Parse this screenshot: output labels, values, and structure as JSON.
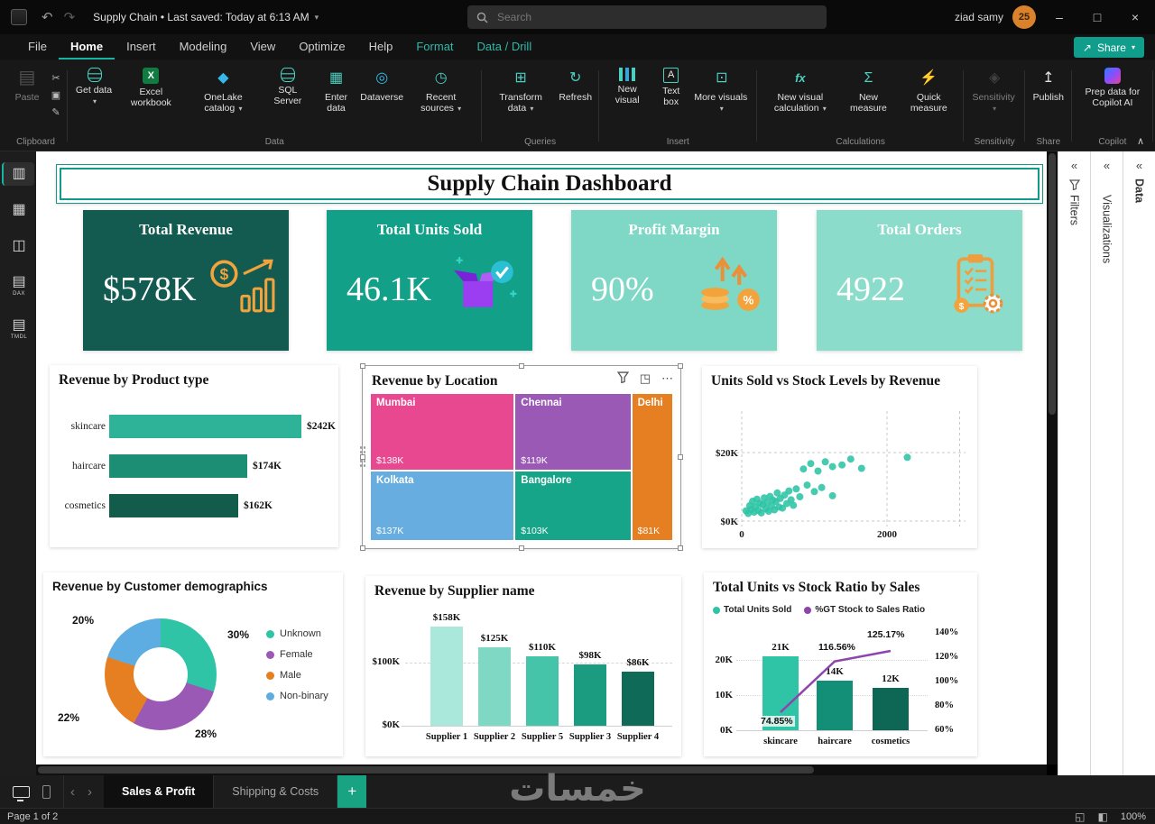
{
  "window": {
    "title": "Supply Chain • Last saved: Today at 6:13 AM",
    "search_placeholder": "Search",
    "user_name": "ziad samy",
    "avatar_text": "25"
  },
  "header": {
    "share_label": "Share"
  },
  "menu": {
    "items": [
      {
        "label": "File"
      },
      {
        "label": "Home",
        "active": true
      },
      {
        "label": "Insert"
      },
      {
        "label": "Modeling"
      },
      {
        "label": "View"
      },
      {
        "label": "Optimize"
      },
      {
        "label": "Help"
      },
      {
        "label": "Format",
        "accent": true
      },
      {
        "label": "Data / Drill",
        "accent": true
      }
    ]
  },
  "ribbon": {
    "groups": [
      {
        "label": "Clipboard",
        "buttons": [
          {
            "label": "Paste",
            "icon": "paste-icon",
            "disabled": true
          }
        ],
        "small_icons": [
          "cut-icon",
          "copy-icon",
          "format-painter-icon"
        ]
      },
      {
        "label": "Data",
        "buttons": [
          {
            "label": "Get data",
            "icon": "database-icon",
            "dropdown": true
          },
          {
            "label": "Excel workbook",
            "icon": "excel-icon"
          },
          {
            "label": "OneLake catalog",
            "icon": "onelake-icon",
            "dropdown": true
          },
          {
            "label": "SQL Server",
            "icon": "sql-server-icon"
          },
          {
            "label": "Enter data",
            "icon": "enter-data-icon"
          },
          {
            "label": "Dataverse",
            "icon": "dataverse-icon"
          },
          {
            "label": "Recent sources",
            "icon": "recent-sources-icon",
            "dropdown": true
          }
        ]
      },
      {
        "label": "Queries",
        "buttons": [
          {
            "label": "Transform data",
            "icon": "transform-data-icon",
            "dropdown": true
          },
          {
            "label": "Refresh",
            "icon": "refresh-icon"
          }
        ]
      },
      {
        "label": "Insert",
        "buttons": [
          {
            "label": "New visual",
            "icon": "new-visual-icon"
          },
          {
            "label": "Text box",
            "icon": "text-box-icon"
          },
          {
            "label": "More visuals",
            "icon": "more-visuals-icon",
            "dropdown": true
          }
        ]
      },
      {
        "label": "Calculations",
        "buttons": [
          {
            "label": "New visual calculation",
            "icon": "new-visual-calculation-icon",
            "dropdown": true
          },
          {
            "label": "New measure",
            "icon": "new-measure-icon"
          },
          {
            "label": "Quick measure",
            "icon": "quick-measure-icon"
          }
        ]
      },
      {
        "label": "Sensitivity",
        "buttons": [
          {
            "label": "Sensitivity",
            "icon": "sensitivity-icon",
            "dropdown": true,
            "disabled": true
          }
        ]
      },
      {
        "label": "Share",
        "buttons": [
          {
            "label": "Publish",
            "icon": "publish-icon"
          }
        ]
      },
      {
        "label": "Copilot",
        "buttons": [
          {
            "label": "Prep data for Copilot AI",
            "icon": "copilot-icon"
          }
        ]
      }
    ]
  },
  "sidebar": {
    "items": [
      {
        "name": "report-view"
      },
      {
        "name": "table-view"
      },
      {
        "name": "model-view"
      },
      {
        "name": "dax-query-view",
        "caption": "DAX"
      },
      {
        "name": "tmdl-view",
        "caption": "TMDL"
      }
    ]
  },
  "panels": [
    {
      "label": "Filters",
      "funnel": true
    },
    {
      "label": "Visualizations"
    },
    {
      "label": "Data",
      "bold": true
    }
  ],
  "canvas": {
    "dashboard_title": "Supply Chain Dashboard",
    "kpis": [
      {
        "title": "Total Revenue",
        "value": "$578K",
        "bg": "#135B50"
      },
      {
        "title": "Total Units Sold",
        "value": "46.1K",
        "bg": "#12A089"
      },
      {
        "title": "Profit Margin",
        "value": "90%",
        "bg": "#7FD8C6"
      },
      {
        "title": "Total Orders",
        "value": "4922",
        "bg": "#8BDCCB"
      }
    ]
  },
  "pagebar": {
    "tabs": [
      "Sales & Profit",
      "Shipping & Costs"
    ],
    "active_index": 0,
    "add_label": "+",
    "watermark": "خمسات"
  },
  "statusbar": {
    "page_indicator": "Page 1 of 2",
    "zoom": "100%"
  },
  "chart_data": [
    {
      "id": "revenue-by-product",
      "type": "bar",
      "orientation": "horizontal",
      "title": "Revenue by Product type",
      "categories": [
        "skincare",
        "haircare",
        "cosmetics"
      ],
      "values": [
        242,
        174,
        162
      ],
      "value_labels": [
        "$242K",
        "$174K",
        "$162K"
      ],
      "colors": [
        "#2EB398",
        "#1B8E74",
        "#115C4B"
      ],
      "xlim": [
        0,
        260
      ]
    },
    {
      "id": "revenue-by-location",
      "type": "treemap",
      "title": "Revenue by Location",
      "selected": true,
      "cells": [
        {
          "name": "Mumbai",
          "value": 138,
          "value_label": "$138K",
          "color": "#E8488F",
          "rect": {
            "x": 0,
            "y": 0,
            "w": 47.7,
            "h": 52.3
          }
        },
        {
          "name": "Chennai",
          "value": 119,
          "value_label": "$119K",
          "color": "#9B59B6",
          "rect": {
            "x": 47.7,
            "y": 0,
            "w": 38.5,
            "h": 52.3
          }
        },
        {
          "name": "Delhi",
          "value": 81,
          "value_label": "$81K",
          "color": "#E67E22",
          "rect": {
            "x": 86.2,
            "y": 0,
            "w": 13.8,
            "h": 100
          }
        },
        {
          "name": "Kolkata",
          "value": 137,
          "value_label": "$137K",
          "color": "#67ADE0",
          "rect": {
            "x": 0,
            "y": 52.3,
            "w": 47.7,
            "h": 47.7
          }
        },
        {
          "name": "Bangalore",
          "value": 103,
          "value_label": "$103K",
          "color": "#17A589",
          "rect": {
            "x": 47.7,
            "y": 52.3,
            "w": 38.5,
            "h": 47.7
          }
        }
      ]
    },
    {
      "id": "units-vs-stock",
      "type": "scatter",
      "title": "Units Sold vs Stock Levels by Revenue",
      "color": "#2EC4A5",
      "xlim": [
        0,
        3200
      ],
      "ylim": [
        0,
        26
      ],
      "x_ticks": [
        {
          "v": 0,
          "label": "0"
        },
        {
          "v": 2000,
          "label": "2000"
        }
      ],
      "y_ticks": [
        {
          "v": 0,
          "label": "$0K"
        },
        {
          "v": 20,
          "label": "$20K"
        }
      ],
      "points": [
        [
          60,
          3
        ],
        [
          90,
          2.2
        ],
        [
          110,
          4.5
        ],
        [
          130,
          3.4
        ],
        [
          150,
          5.8
        ],
        [
          170,
          2.6
        ],
        [
          190,
          4.2
        ],
        [
          210,
          6.4
        ],
        [
          230,
          3.1
        ],
        [
          250,
          5.2
        ],
        [
          270,
          2.4
        ],
        [
          290,
          4.8
        ],
        [
          310,
          6.8
        ],
        [
          330,
          3.6
        ],
        [
          350,
          5.4
        ],
        [
          370,
          2.9
        ],
        [
          390,
          7.2
        ],
        [
          410,
          4.4
        ],
        [
          430,
          6.1
        ],
        [
          450,
          3.3
        ],
        [
          470,
          5.7
        ],
        [
          490,
          8.2
        ],
        [
          510,
          4.1
        ],
        [
          530,
          6.6
        ],
        [
          560,
          3.8
        ],
        [
          590,
          7.6
        ],
        [
          620,
          5.1
        ],
        [
          650,
          8.8
        ],
        [
          680,
          6.2
        ],
        [
          710,
          4.6
        ],
        [
          750,
          9.4
        ],
        [
          800,
          7.1
        ],
        [
          900,
          10.5
        ],
        [
          1000,
          8.6
        ],
        [
          1100,
          9.8
        ],
        [
          1250,
          7.4
        ],
        [
          850,
          15.2
        ],
        [
          950,
          16.8
        ],
        [
          1050,
          14.6
        ],
        [
          1150,
          17.3
        ],
        [
          1250,
          15.9
        ],
        [
          1380,
          16.4
        ],
        [
          1500,
          18.1
        ],
        [
          1650,
          15.4
        ],
        [
          2280,
          18.6
        ]
      ]
    },
    {
      "id": "customer-demographics",
      "type": "pie",
      "donut": true,
      "title": "Revenue by Customer demographics",
      "slices": [
        {
          "label": "Unknown",
          "pct": 30,
          "color": "#2EC4A5"
        },
        {
          "label": "Female",
          "pct": 28,
          "color": "#9B59B6"
        },
        {
          "label": "Male",
          "pct": 22,
          "color": "#E67E22"
        },
        {
          "label": "Non-binary",
          "pct": 20,
          "color": "#5DADE2"
        }
      ],
      "pct_label_positions": [
        [
          204,
          62
        ],
        [
          168,
          172
        ],
        [
          16,
          154
        ],
        [
          32,
          46
        ]
      ],
      "legend_position": "right"
    },
    {
      "id": "revenue-by-supplier",
      "type": "bar",
      "orientation": "vertical",
      "title": "Revenue by Supplier name",
      "categories": [
        "Supplier 1",
        "Supplier 2",
        "Supplier 5",
        "Supplier 3",
        "Supplier 4"
      ],
      "values": [
        158,
        125,
        110,
        98,
        86
      ],
      "value_labels": [
        "$158K",
        "$125K",
        "$110K",
        "$98K",
        "$86K"
      ],
      "colors": [
        "#A9E8DA",
        "#7FD8C4",
        "#45C4A9",
        "#1B9B80",
        "#0F6B57"
      ],
      "y_ticks": [
        {
          "v": 0,
          "label": "$0K"
        },
        {
          "v": 100,
          "label": "$100K"
        }
      ],
      "ylim": [
        0,
        170
      ]
    },
    {
      "id": "units-vs-stock-ratio",
      "type": "combo",
      "title": "Total Units vs Stock Ratio by Sales",
      "categories": [
        "skincare",
        "haircare",
        "cosmetics"
      ],
      "series": [
        {
          "name": "Total Units Sold",
          "kind": "bar",
          "values": [
            21,
            14,
            12
          ],
          "labels": [
            "21K",
            "14K",
            "12K"
          ],
          "colors": [
            "#2EC4A5",
            "#148F77",
            "#0E6655"
          ],
          "legend_color": "#2EC4A5",
          "axis": "left"
        },
        {
          "name": "%GT Stock to Sales Ratio",
          "kind": "line",
          "values": [
            74.85,
            116.56,
            125.17
          ],
          "labels": [
            "74.85%",
            "116.56%",
            "125.17%"
          ],
          "color": "#8E44AD",
          "legend_color": "#8E44AD",
          "axis": "right"
        }
      ],
      "left_ticks": [
        {
          "v": 0,
          "label": "0K"
        },
        {
          "v": 10,
          "label": "10K"
        },
        {
          "v": 20,
          "label": "20K"
        }
      ],
      "right_ticks": [
        {
          "v": 60,
          "label": "60%"
        },
        {
          "v": 80,
          "label": "80%"
        },
        {
          "v": 100,
          "label": "100%"
        },
        {
          "v": 120,
          "label": "120%"
        },
        {
          "v": 140,
          "label": "140%"
        }
      ]
    }
  ]
}
